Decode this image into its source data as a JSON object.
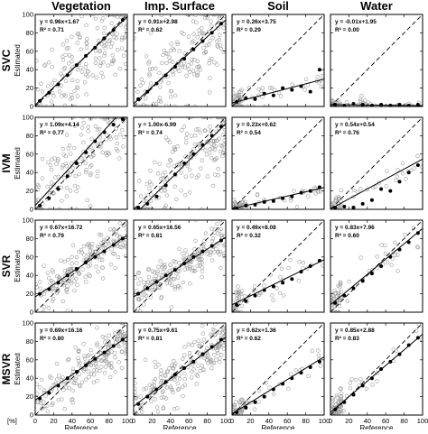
{
  "figure": {
    "column_titles": [
      "Vegetation",
      "Imp. Surface",
      "Soil",
      "Water"
    ],
    "row_titles": [
      "SVC",
      "IVM",
      "SVR",
      "MSVR"
    ],
    "y_axis_label": "Estimated",
    "x_axis_label": "Reference",
    "percent_label": "[%]"
  },
  "chart_data": {
    "type": "scatter",
    "x_ticks": [
      0,
      20,
      40,
      60,
      80,
      100
    ],
    "y_ticks": [
      0,
      20,
      40,
      60,
      80,
      100
    ],
    "xlim": [
      0,
      100
    ],
    "ylim": [
      0,
      100
    ],
    "reference_line": "1:1 dashed",
    "fit_line": "solid",
    "panels": [
      {
        "row": "SVC",
        "col": "Vegetation",
        "equation": "y = 0.96x+1.67",
        "r2": "R² = 0.71",
        "slope": 0.96,
        "intercept": 1.67,
        "spread": 22,
        "n": 170,
        "binned": [
          [
            5,
            6
          ],
          [
            15,
            15
          ],
          [
            25,
            24
          ],
          [
            35,
            34
          ],
          [
            45,
            45
          ],
          [
            55,
            55
          ],
          [
            65,
            64
          ],
          [
            75,
            74
          ],
          [
            85,
            83
          ],
          [
            95,
            94
          ]
        ]
      },
      {
        "row": "SVC",
        "col": "Imp. Surface",
        "equation": "y = 0.91x+2.98",
        "r2": "R² = 0.62",
        "slope": 0.91,
        "intercept": 2.98,
        "spread": 26,
        "n": 170,
        "binned": [
          [
            5,
            8
          ],
          [
            15,
            16
          ],
          [
            25,
            25
          ],
          [
            35,
            34
          ],
          [
            45,
            43
          ],
          [
            55,
            52
          ],
          [
            65,
            62
          ],
          [
            75,
            71
          ],
          [
            85,
            80
          ],
          [
            95,
            90
          ]
        ]
      },
      {
        "row": "SVC",
        "col": "Soil",
        "equation": "y = 0.26x+3.75",
        "r2": "R² = 0.29",
        "slope": 0.26,
        "intercept": 3.75,
        "spread": 5,
        "n": 70,
        "binned": [
          [
            5,
            5
          ],
          [
            15,
            9
          ],
          [
            25,
            8
          ],
          [
            35,
            14
          ],
          [
            45,
            12
          ],
          [
            55,
            20
          ],
          [
            65,
            18
          ],
          [
            75,
            22
          ],
          [
            85,
            16
          ],
          [
            95,
            40
          ]
        ]
      },
      {
        "row": "SVC",
        "col": "Water",
        "equation": "y = -0.01x+1.95",
        "r2": "R² = 0.00",
        "slope": -0.01,
        "intercept": 1.95,
        "spread": 3,
        "n": 60,
        "binned": [
          [
            5,
            2
          ],
          [
            15,
            1
          ],
          [
            25,
            3
          ],
          [
            35,
            2
          ],
          [
            45,
            1
          ],
          [
            55,
            2
          ],
          [
            65,
            1
          ],
          [
            75,
            2
          ],
          [
            85,
            1
          ],
          [
            95,
            2
          ]
        ]
      },
      {
        "row": "IVM",
        "col": "Vegetation",
        "equation": "y = 1.09x+4.14",
        "r2": "R² = 0.77",
        "slope": 1.09,
        "intercept": 4.14,
        "spread": 22,
        "n": 170,
        "binned": [
          [
            5,
            4
          ],
          [
            15,
            12
          ],
          [
            25,
            22
          ],
          [
            35,
            36
          ],
          [
            45,
            50
          ],
          [
            55,
            62
          ],
          [
            65,
            74
          ],
          [
            75,
            84
          ],
          [
            85,
            92
          ],
          [
            95,
            98
          ]
        ]
      },
      {
        "row": "IVM",
        "col": "Imp. Surface",
        "equation": "y = 1.00x-6.99",
        "r2": "R² = 0.74",
        "slope": 1.0,
        "intercept": -6.99,
        "spread": 24,
        "n": 170,
        "binned": [
          [
            5,
            2
          ],
          [
            15,
            6
          ],
          [
            25,
            14
          ],
          [
            35,
            26
          ],
          [
            45,
            38
          ],
          [
            55,
            50
          ],
          [
            65,
            60
          ],
          [
            75,
            70
          ],
          [
            85,
            80
          ],
          [
            95,
            90
          ]
        ]
      },
      {
        "row": "IVM",
        "col": "Soil",
        "equation": "y = 0.23x+0.62",
        "r2": "R² = 0.54",
        "slope": 0.23,
        "intercept": 0.62,
        "spread": 5,
        "n": 60,
        "binned": [
          [
            5,
            1
          ],
          [
            15,
            4
          ],
          [
            25,
            5
          ],
          [
            35,
            8
          ],
          [
            45,
            9
          ],
          [
            55,
            12
          ],
          [
            65,
            14
          ],
          [
            75,
            18
          ],
          [
            85,
            20
          ],
          [
            95,
            24
          ]
        ]
      },
      {
        "row": "IVM",
        "col": "Water",
        "equation": "y = 0.54x+0.54",
        "r2": "R² = 0.76",
        "slope": 0.54,
        "intercept": 0.54,
        "spread": 6,
        "n": 60,
        "binned": [
          [
            5,
            2
          ],
          [
            15,
            3
          ],
          [
            25,
            2
          ],
          [
            35,
            6
          ],
          [
            45,
            10
          ],
          [
            55,
            22
          ],
          [
            65,
            20
          ],
          [
            75,
            30
          ],
          [
            85,
            40
          ],
          [
            95,
            48
          ]
        ]
      },
      {
        "row": "SVR",
        "col": "Vegetation",
        "equation": "y = 0.67x+16.72",
        "r2": "R² = 0.79",
        "slope": 0.67,
        "intercept": 16.72,
        "spread": 12,
        "n": 190,
        "binned": [
          [
            5,
            20
          ],
          [
            15,
            25
          ],
          [
            25,
            32
          ],
          [
            35,
            40
          ],
          [
            45,
            47
          ],
          [
            55,
            54
          ],
          [
            65,
            60
          ],
          [
            75,
            66
          ],
          [
            85,
            73
          ],
          [
            95,
            80
          ]
        ]
      },
      {
        "row": "SVR",
        "col": "Imp. Surface",
        "equation": "y = 0.65x+16.56",
        "r2": "R² = 0.81",
        "slope": 0.65,
        "intercept": 16.56,
        "spread": 12,
        "n": 190,
        "binned": [
          [
            5,
            20
          ],
          [
            15,
            26
          ],
          [
            25,
            33
          ],
          [
            35,
            40
          ],
          [
            45,
            46
          ],
          [
            55,
            53
          ],
          [
            65,
            60
          ],
          [
            75,
            66
          ],
          [
            85,
            72
          ],
          [
            95,
            78
          ]
        ]
      },
      {
        "row": "SVR",
        "col": "Soil",
        "equation": "y = 0.49x+8.08",
        "r2": "R² = 0.32",
        "slope": 0.49,
        "intercept": 8.08,
        "spread": 8,
        "n": 60,
        "binned": [
          [
            5,
            8
          ],
          [
            15,
            12
          ],
          [
            25,
            18
          ],
          [
            35,
            24
          ],
          [
            45,
            28
          ],
          [
            55,
            32
          ],
          [
            65,
            36
          ],
          [
            75,
            44
          ],
          [
            85,
            50
          ],
          [
            95,
            56
          ]
        ]
      },
      {
        "row": "SVR",
        "col": "Water",
        "equation": "y = 0.83x+7.96",
        "r2": "R² = 0.60",
        "slope": 0.83,
        "intercept": 7.96,
        "spread": 10,
        "n": 70,
        "binned": [
          [
            5,
            10
          ],
          [
            15,
            18
          ],
          [
            25,
            26
          ],
          [
            35,
            34
          ],
          [
            45,
            42
          ],
          [
            55,
            50
          ],
          [
            65,
            60
          ],
          [
            75,
            68
          ],
          [
            85,
            76
          ],
          [
            95,
            86
          ]
        ]
      },
      {
        "row": "MSVR",
        "col": "Vegetation",
        "equation": "y = 0.69x+16.16",
        "r2": "R² = 0.80",
        "slope": 0.69,
        "intercept": 16.16,
        "spread": 12,
        "n": 190,
        "binned": [
          [
            5,
            18
          ],
          [
            15,
            24
          ],
          [
            25,
            32
          ],
          [
            35,
            40
          ],
          [
            45,
            47
          ],
          [
            55,
            54
          ],
          [
            65,
            61
          ],
          [
            75,
            68
          ],
          [
            85,
            75
          ],
          [
            95,
            82
          ]
        ]
      },
      {
        "row": "MSVR",
        "col": "Imp. Surface",
        "equation": "y = 0.75x+9.61",
        "r2": "R² = 0.81",
        "slope": 0.75,
        "intercept": 9.61,
        "spread": 12,
        "n": 190,
        "binned": [
          [
            5,
            12
          ],
          [
            15,
            20
          ],
          [
            25,
            28
          ],
          [
            35,
            36
          ],
          [
            45,
            44
          ],
          [
            55,
            51
          ],
          [
            65,
            58
          ],
          [
            75,
            66
          ],
          [
            85,
            74
          ],
          [
            95,
            82
          ]
        ]
      },
      {
        "row": "MSVR",
        "col": "Soil",
        "equation": "y = 0.62x+1.36",
        "r2": "R² = 0.62",
        "slope": 0.62,
        "intercept": 1.36,
        "spread": 7,
        "n": 60,
        "binned": [
          [
            5,
            3
          ],
          [
            15,
            8
          ],
          [
            25,
            14
          ],
          [
            35,
            20
          ],
          [
            45,
            28
          ],
          [
            55,
            34
          ],
          [
            65,
            40
          ],
          [
            75,
            46
          ],
          [
            85,
            52
          ],
          [
            95,
            58
          ]
        ]
      },
      {
        "row": "MSVR",
        "col": "Water",
        "equation": "y = 0.85x+2.88",
        "r2": "R² = 0.83",
        "slope": 0.85,
        "intercept": 2.88,
        "spread": 8,
        "n": 70,
        "binned": [
          [
            5,
            6
          ],
          [
            15,
            14
          ],
          [
            25,
            22
          ],
          [
            35,
            32
          ],
          [
            45,
            40
          ],
          [
            55,
            50
          ],
          [
            65,
            58
          ],
          [
            75,
            66
          ],
          [
            85,
            76
          ],
          [
            95,
            84
          ]
        ]
      }
    ]
  }
}
